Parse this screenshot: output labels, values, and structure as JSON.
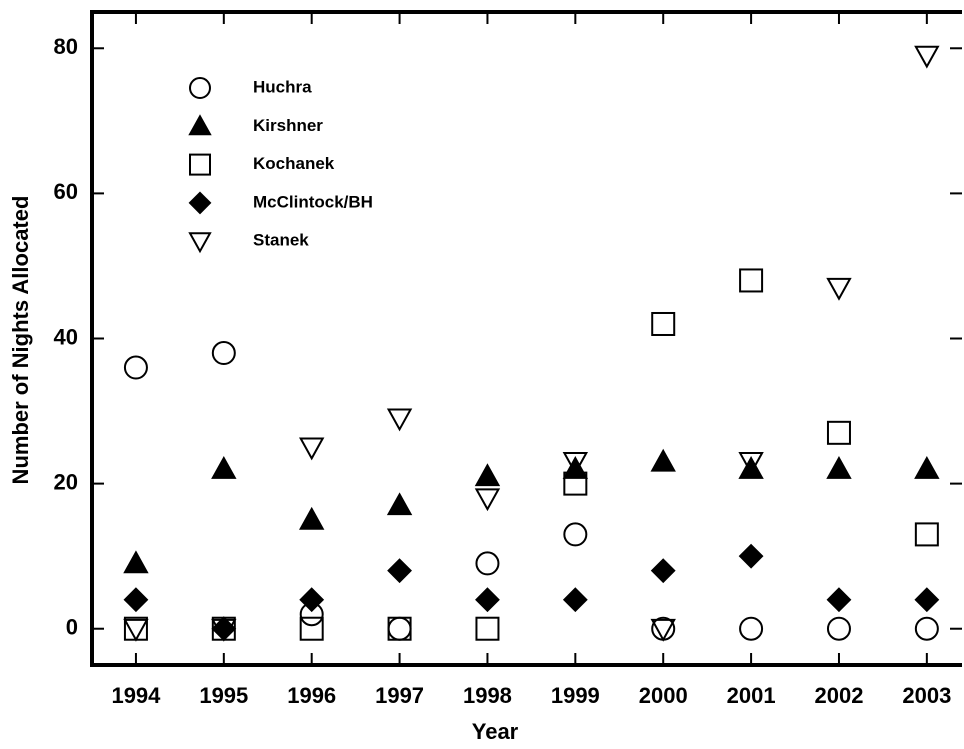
{
  "chart_data": {
    "type": "scatter",
    "x_label": "Year",
    "y_label": "Number of Nights Allocated",
    "x": [
      1994,
      1995,
      1996,
      1997,
      1998,
      1999,
      2000,
      2001,
      2002,
      2003
    ],
    "series": [
      {
        "name": "Huchra",
        "color": "#000000",
        "marker": "circle",
        "filled": false,
        "values": [
          36,
          38,
          2,
          0,
          9,
          13,
          0,
          0,
          0,
          0
        ]
      },
      {
        "name": "Kirshner",
        "color": "#000000",
        "marker": "triangle-up",
        "filled": true,
        "values": [
          9,
          22,
          15,
          17,
          21,
          22,
          23,
          22,
          22,
          22
        ]
      },
      {
        "name": "Kochanek",
        "color": "#000000",
        "marker": "square",
        "filled": false,
        "values": [
          0,
          0,
          0,
          0,
          0,
          20,
          42,
          48,
          27,
          13
        ]
      },
      {
        "name": "McClintock/BH",
        "color": "#000000",
        "marker": "diamond",
        "filled": true,
        "values": [
          4,
          0,
          4,
          8,
          4,
          4,
          8,
          10,
          4,
          4
        ]
      },
      {
        "name": "Stanek",
        "color": "#000000",
        "marker": "triangle-down",
        "filled": false,
        "values": [
          0,
          0,
          25,
          29,
          18,
          23,
          0,
          23,
          47,
          79
        ]
      }
    ],
    "xlim": [
      1993.5,
      2003.4
    ],
    "xticks": [
      1994,
      1995,
      1996,
      1997,
      1998,
      1999,
      2000,
      2001,
      2002,
      2003
    ],
    "ylim": [
      -5,
      85
    ],
    "yticks": [
      0,
      20,
      40,
      60,
      80
    ],
    "legend": "upper-left",
    "grid": false
  }
}
